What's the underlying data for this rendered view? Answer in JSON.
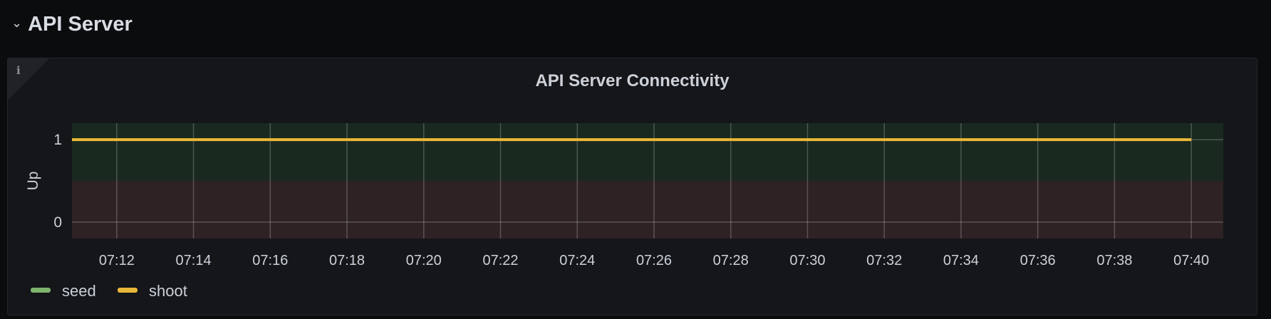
{
  "row": {
    "title": "API Server",
    "icon": "chevron-down-icon"
  },
  "panel": {
    "title": "API Server Connectivity",
    "info_icon": "info-icon"
  },
  "chart_data": {
    "type": "line",
    "title": "API Server Connectivity",
    "ylabel": "Up",
    "xlabel": "",
    "x_ticks": [
      "07:12",
      "07:14",
      "07:16",
      "07:18",
      "07:20",
      "07:22",
      "07:24",
      "07:26",
      "07:28",
      "07:30",
      "07:32",
      "07:34",
      "07:36",
      "07:38",
      "07:40"
    ],
    "y_ticks": [
      0,
      1
    ],
    "xlim": [
      "07:10:50",
      "07:40:50"
    ],
    "ylim": [
      -0.2,
      1.2
    ],
    "grid": true,
    "thresholds": [
      {
        "from": 0.5,
        "to": 1.2,
        "color": "#19291f"
      },
      {
        "from": -0.2,
        "to": 0.5,
        "color": "#2f2225"
      }
    ],
    "legend_placement": "bottom-left",
    "series": [
      {
        "name": "seed",
        "color": "#7eb26d",
        "x": [],
        "y": []
      },
      {
        "name": "shoot",
        "color": "#eab839",
        "x": [
          "07:10:50",
          "07:40"
        ],
        "y": [
          1,
          1
        ]
      }
    ]
  }
}
